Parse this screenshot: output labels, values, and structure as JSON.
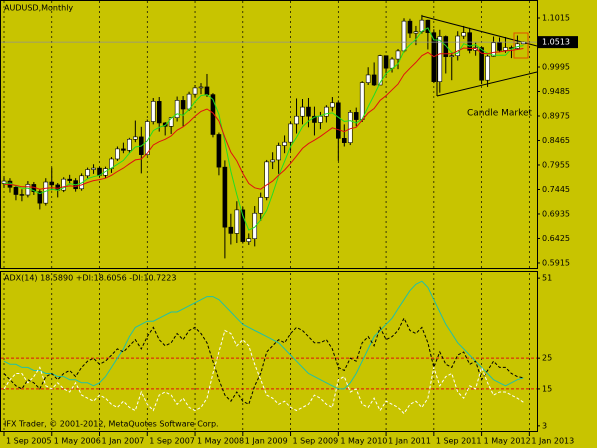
{
  "chart_data": [
    {
      "type": "candlestick",
      "title": "AUDUSD,Monthly",
      "x": [
        "2005-09-01",
        "2005-10-01",
        "2005-11-01",
        "2005-12-01",
        "2006-01-01",
        "2006-02-01",
        "2006-03-01",
        "2006-04-01",
        "2006-05-01",
        "2006-06-01",
        "2006-07-01",
        "2006-08-01",
        "2006-09-01",
        "2006-10-01",
        "2006-11-01",
        "2006-12-01",
        "2007-01-01",
        "2007-02-01",
        "2007-03-01",
        "2007-04-01",
        "2007-05-01",
        "2007-06-01",
        "2007-07-01",
        "2007-08-01",
        "2007-09-01",
        "2007-10-01",
        "2007-11-01",
        "2007-12-01",
        "2008-01-01",
        "2008-02-01",
        "2008-03-01",
        "2008-04-01",
        "2008-05-01",
        "2008-06-01",
        "2008-07-01",
        "2008-08-01",
        "2008-09-01",
        "2008-10-01",
        "2008-11-01",
        "2008-12-01",
        "2009-01-01",
        "2009-02-01",
        "2009-03-01",
        "2009-04-01",
        "2009-05-01",
        "2009-06-01",
        "2009-07-01",
        "2009-08-01",
        "2009-09-01",
        "2009-10-01",
        "2009-11-01",
        "2009-12-01",
        "2010-01-01",
        "2010-02-01",
        "2010-03-01",
        "2010-04-01",
        "2010-05-01",
        "2010-06-01",
        "2010-07-01",
        "2010-08-01",
        "2010-09-01",
        "2010-10-01",
        "2010-11-01",
        "2010-12-01",
        "2011-01-01",
        "2011-02-01",
        "2011-03-01",
        "2011-04-01",
        "2011-05-01",
        "2011-06-01",
        "2011-07-01",
        "2011-08-01",
        "2011-09-01",
        "2011-10-01",
        "2011-11-01",
        "2011-12-01",
        "2012-01-01",
        "2012-02-01",
        "2012-03-01",
        "2012-04-01",
        "2012-05-01",
        "2012-06-01",
        "2012-07-01",
        "2012-08-01",
        "2012-09-01",
        "2012-10-01",
        "2012-11-01",
        "2012-12-01"
      ],
      "open": [
        0.757,
        0.762,
        0.749,
        0.734,
        0.733,
        0.755,
        0.74,
        0.716,
        0.76,
        0.754,
        0.743,
        0.766,
        0.763,
        0.746,
        0.773,
        0.786,
        0.789,
        0.774,
        0.788,
        0.808,
        0.829,
        0.826,
        0.849,
        0.854,
        0.817,
        0.886,
        0.928,
        0.883,
        0.876,
        0.894,
        0.93,
        0.912,
        0.943,
        0.956,
        0.958,
        0.942,
        0.859,
        0.791,
        0.666,
        0.653,
        0.702,
        0.636,
        0.642,
        0.695,
        0.728,
        0.802,
        0.806,
        0.836,
        0.843,
        0.881,
        0.897,
        0.916,
        0.897,
        0.884,
        0.897,
        0.916,
        0.925,
        0.851,
        0.842,
        0.905,
        0.89,
        0.967,
        0.983,
        0.962,
        1.023,
        0.997,
        1.016,
        1.033,
        1.095,
        1.07,
        1.073,
        1.097,
        1.071,
        0.969,
        1.063,
        1.021,
        1.023,
        1.064,
        1.071,
        1.034,
        1.04,
        0.972,
        1.022,
        1.05,
        1.034,
        1.04,
        1.038,
        1.0478
      ],
      "high": [
        0.772,
        0.768,
        0.752,
        0.745,
        0.762,
        0.76,
        0.745,
        0.768,
        0.79,
        0.758,
        0.77,
        0.775,
        0.768,
        0.778,
        0.79,
        0.797,
        0.792,
        0.792,
        0.812,
        0.834,
        0.842,
        0.852,
        0.888,
        0.875,
        0.89,
        0.935,
        0.937,
        0.885,
        0.895,
        0.938,
        0.939,
        0.948,
        0.962,
        0.966,
        0.985,
        0.945,
        0.863,
        0.805,
        0.694,
        0.72,
        0.708,
        0.653,
        0.71,
        0.738,
        0.806,
        0.822,
        0.842,
        0.857,
        0.885,
        0.934,
        0.933,
        0.935,
        0.917,
        0.906,
        0.92,
        0.937,
        0.93,
        0.88,
        0.91,
        0.915,
        0.97,
        0.999,
        1.009,
        1.025,
        1.02,
        1.02,
        1.037,
        1.101,
        1.1,
        1.085,
        1.108,
        1.098,
        1.078,
        1.077,
        1.065,
        1.031,
        1.074,
        1.085,
        1.081,
        1.05,
        1.042,
        1.025,
        1.063,
        1.061,
        1.062,
        1.044,
        1.065,
        1.0527
      ],
      "low": [
        0.748,
        0.738,
        0.722,
        0.72,
        0.728,
        0.733,
        0.703,
        0.711,
        0.743,
        0.728,
        0.739,
        0.755,
        0.74,
        0.742,
        0.768,
        0.777,
        0.77,
        0.768,
        0.779,
        0.804,
        0.82,
        0.821,
        0.843,
        0.778,
        0.815,
        0.88,
        0.865,
        0.857,
        0.86,
        0.886,
        0.876,
        0.908,
        0.937,
        0.943,
        0.937,
        0.853,
        0.774,
        0.601,
        0.63,
        0.633,
        0.632,
        0.629,
        0.626,
        0.679,
        0.722,
        0.787,
        0.777,
        0.82,
        0.825,
        0.861,
        0.88,
        0.874,
        0.857,
        0.87,
        0.884,
        0.907,
        0.804,
        0.834,
        0.837,
        0.876,
        0.885,
        0.962,
        0.96,
        0.967,
        0.982,
        0.988,
        0.995,
        1.03,
        1.06,
        1.045,
        1.069,
        1.036,
        0.966,
        0.946,
        0.986,
        0.972,
        1.013,
        1.058,
        1.028,
        1.023,
        0.964,
        0.958,
        1.021,
        1.03,
        1.029,
        1.018,
        1.035,
        1.0472
      ],
      "close": [
        0.762,
        0.749,
        0.734,
        0.733,
        0.755,
        0.74,
        0.716,
        0.76,
        0.754,
        0.743,
        0.766,
        0.763,
        0.746,
        0.773,
        0.786,
        0.789,
        0.774,
        0.788,
        0.808,
        0.829,
        0.826,
        0.849,
        0.854,
        0.817,
        0.886,
        0.928,
        0.883,
        0.876,
        0.894,
        0.93,
        0.912,
        0.943,
        0.956,
        0.958,
        0.942,
        0.859,
        0.791,
        0.666,
        0.653,
        0.702,
        0.636,
        0.642,
        0.695,
        0.728,
        0.802,
        0.806,
        0.836,
        0.843,
        0.881,
        0.897,
        0.916,
        0.897,
        0.884,
        0.897,
        0.916,
        0.925,
        0.851,
        0.842,
        0.905,
        0.89,
        0.967,
        0.983,
        0.962,
        1.023,
        0.997,
        1.016,
        1.033,
        1.095,
        1.07,
        1.073,
        1.097,
        1.071,
        0.969,
        1.063,
        1.021,
        1.023,
        1.064,
        1.071,
        1.034,
        1.04,
        0.972,
        1.022,
        1.05,
        1.034,
        1.04,
        1.038,
        1.0478,
        1.0513
      ],
      "up_color": "#ffffff",
      "down_color": "#000000",
      "wick_color": "#000000",
      "series": [
        {
          "color": "#22dd22",
          "values": [
            0.757,
            0.758,
            0.752,
            0.747,
            0.747,
            0.742,
            0.736,
            0.741,
            0.745,
            0.743,
            0.748,
            0.757,
            0.754,
            0.758,
            0.767,
            0.771,
            0.774,
            0.782,
            0.789,
            0.797,
            0.805,
            0.82,
            0.833,
            0.835,
            0.846,
            0.867,
            0.874,
            0.878,
            0.893,
            0.902,
            0.899,
            0.911,
            0.927,
            0.94,
            0.942,
            0.932,
            0.901,
            0.843,
            0.782,
            0.734,
            0.69,
            0.66,
            0.666,
            0.681,
            0.701,
            0.735,
            0.773,
            0.803,
            0.834,
            0.853,
            0.875,
            0.887,
            0.895,
            0.898,
            0.902,
            0.904,
            0.895,
            0.886,
            0.888,
            0.883,
            0.891,
            0.917,
            0.941,
            0.967,
            0.986,
            0.996,
            1.006,
            1.033,
            1.046,
            1.057,
            1.074,
            1.081,
            1.056,
            1.055,
            1.044,
            1.029,
            1.028,
            1.048,
            1.043,
            1.046,
            1.036,
            1.028,
            1.024,
            1.024,
            1.024,
            1.037,
            1.042,
            1.044
          ]
        },
        {
          "color": "#e01010",
          "values": [
            0.755,
            0.755,
            0.753,
            0.75,
            0.75,
            0.749,
            0.745,
            0.747,
            0.748,
            0.747,
            0.75,
            0.752,
            0.751,
            0.754,
            0.759,
            0.763,
            0.765,
            0.768,
            0.774,
            0.782,
            0.789,
            0.798,
            0.806,
            0.808,
            0.82,
            0.837,
            0.844,
            0.849,
            0.856,
            0.868,
            0.875,
            0.885,
            0.897,
            0.907,
            0.912,
            0.904,
            0.887,
            0.853,
            0.822,
            0.804,
            0.778,
            0.757,
            0.748,
            0.745,
            0.754,
            0.762,
            0.774,
            0.785,
            0.799,
            0.814,
            0.83,
            0.84,
            0.847,
            0.855,
            0.864,
            0.873,
            0.869,
            0.865,
            0.871,
            0.874,
            0.889,
            0.904,
            0.913,
            0.93,
            0.94,
            0.952,
            0.964,
            0.984,
            0.997,
            1.009,
            1.023,
            1.03,
            1.021,
            1.027,
            1.027,
            1.027,
            1.033,
            1.039,
            1.038,
            1.038,
            1.028,
            1.027,
            1.03,
            1.031,
            1.033,
            1.034,
            1.036,
            1.038
          ]
        }
      ],
      "ylim": [
        0.581,
        1.139
      ],
      "yticks": [
        1.1015,
        0.9995,
        0.9485,
        0.8975,
        0.8465,
        0.7955,
        0.7445,
        0.6935,
        0.6425,
        0.5915
      ],
      "xticks": [
        {
          "value": "2005-09-01",
          "label": "1 Sep 2005"
        },
        {
          "value": "2006-05-01",
          "label": "1 May 2006"
        },
        {
          "value": "2007-01-01",
          "label": "1 Jan 2007"
        },
        {
          "value": "2007-09-01",
          "label": "1 Sep 2007"
        },
        {
          "value": "2008-05-01",
          "label": "1 May 2008"
        },
        {
          "value": "2009-01-01",
          "label": "1 Jan 2009"
        },
        {
          "value": "2009-09-01",
          "label": "1 Sep 2009"
        },
        {
          "value": "2010-05-01",
          "label": "1 May 2010"
        },
        {
          "value": "2011-01-01",
          "label": "1 Jan 2011"
        },
        {
          "value": "2011-09-01",
          "label": "1 Sep 2011"
        },
        {
          "value": "2012-05-01",
          "label": "1 May 2012"
        },
        {
          "value": "2013-01-01",
          "label": "1 Jan 2013"
        }
      ],
      "annotation": "Candle Market",
      "grid": true
    },
    {
      "type": "line",
      "title": "ADX(14) 18.5890 +DI:18.6056 -DI:10.7223",
      "series": [
        {
          "color": "#20c0a8",
          "dash": false,
          "values": [
            24,
            23,
            23,
            22,
            22,
            21,
            21,
            20,
            20,
            19,
            19,
            18,
            18,
            17,
            17,
            16,
            17,
            19,
            22,
            25,
            28,
            32,
            35,
            36,
            37,
            37,
            38,
            39,
            40,
            40,
            41,
            42,
            43,
            44,
            45,
            45,
            44,
            42,
            40,
            38,
            36,
            35,
            34,
            33,
            32,
            31,
            30,
            28,
            26,
            24,
            22,
            20,
            19,
            18,
            17,
            16,
            15,
            15,
            17,
            20,
            24,
            28,
            32,
            34,
            36,
            38,
            41,
            44,
            47,
            49,
            50,
            48,
            44,
            40,
            36,
            33,
            30,
            28,
            26,
            24,
            22,
            20,
            18,
            17,
            16,
            17,
            18,
            18.6
          ]
        },
        {
          "color": "#000000",
          "dash": true,
          "values": [
            20,
            18,
            16,
            15,
            18,
            17,
            15,
            19,
            20,
            18,
            20,
            21,
            19,
            22,
            24,
            25,
            23,
            24,
            26,
            28,
            27,
            29,
            31,
            28,
            32,
            35,
            31,
            29,
            30,
            33,
            31,
            34,
            35,
            33,
            30,
            24,
            18,
            13,
            11,
            14,
            11,
            10,
            16,
            20,
            27,
            29,
            31,
            30,
            33,
            35,
            34,
            32,
            30,
            30,
            31,
            28,
            22,
            21,
            25,
            24,
            30,
            32,
            29,
            35,
            31,
            32,
            34,
            38,
            34,
            33,
            35,
            30,
            22,
            27,
            23,
            22,
            26,
            27,
            23,
            24,
            18,
            21,
            24,
            22,
            22,
            20,
            19,
            18.6
          ]
        },
        {
          "color": "#ffffff",
          "dash": true,
          "values": [
            15,
            18,
            20,
            20,
            17,
            19,
            22,
            16,
            15,
            17,
            15,
            14,
            17,
            13,
            12,
            11,
            13,
            12,
            10,
            9,
            11,
            9,
            8,
            14,
            10,
            8,
            13,
            14,
            13,
            10,
            12,
            9,
            8,
            9,
            12,
            20,
            27,
            34,
            33,
            29,
            31,
            29,
            23,
            18,
            13,
            12,
            10,
            11,
            9,
            8,
            9,
            10,
            13,
            12,
            10,
            9,
            18,
            19,
            14,
            15,
            10,
            9,
            12,
            8,
            11,
            10,
            9,
            7,
            10,
            11,
            9,
            12,
            22,
            16,
            19,
            20,
            14,
            12,
            16,
            15,
            22,
            17,
            13,
            14,
            14,
            13,
            12,
            10.7
          ]
        }
      ],
      "ylim": [
        1,
        53
      ],
      "yticks": [
        51,
        25,
        15,
        3
      ],
      "levels": [
        25,
        15
      ],
      "level_color": "#e01010"
    }
  ],
  "footer": "IFX Trader, © 2001-2012, MetaQuotes Software Corp."
}
